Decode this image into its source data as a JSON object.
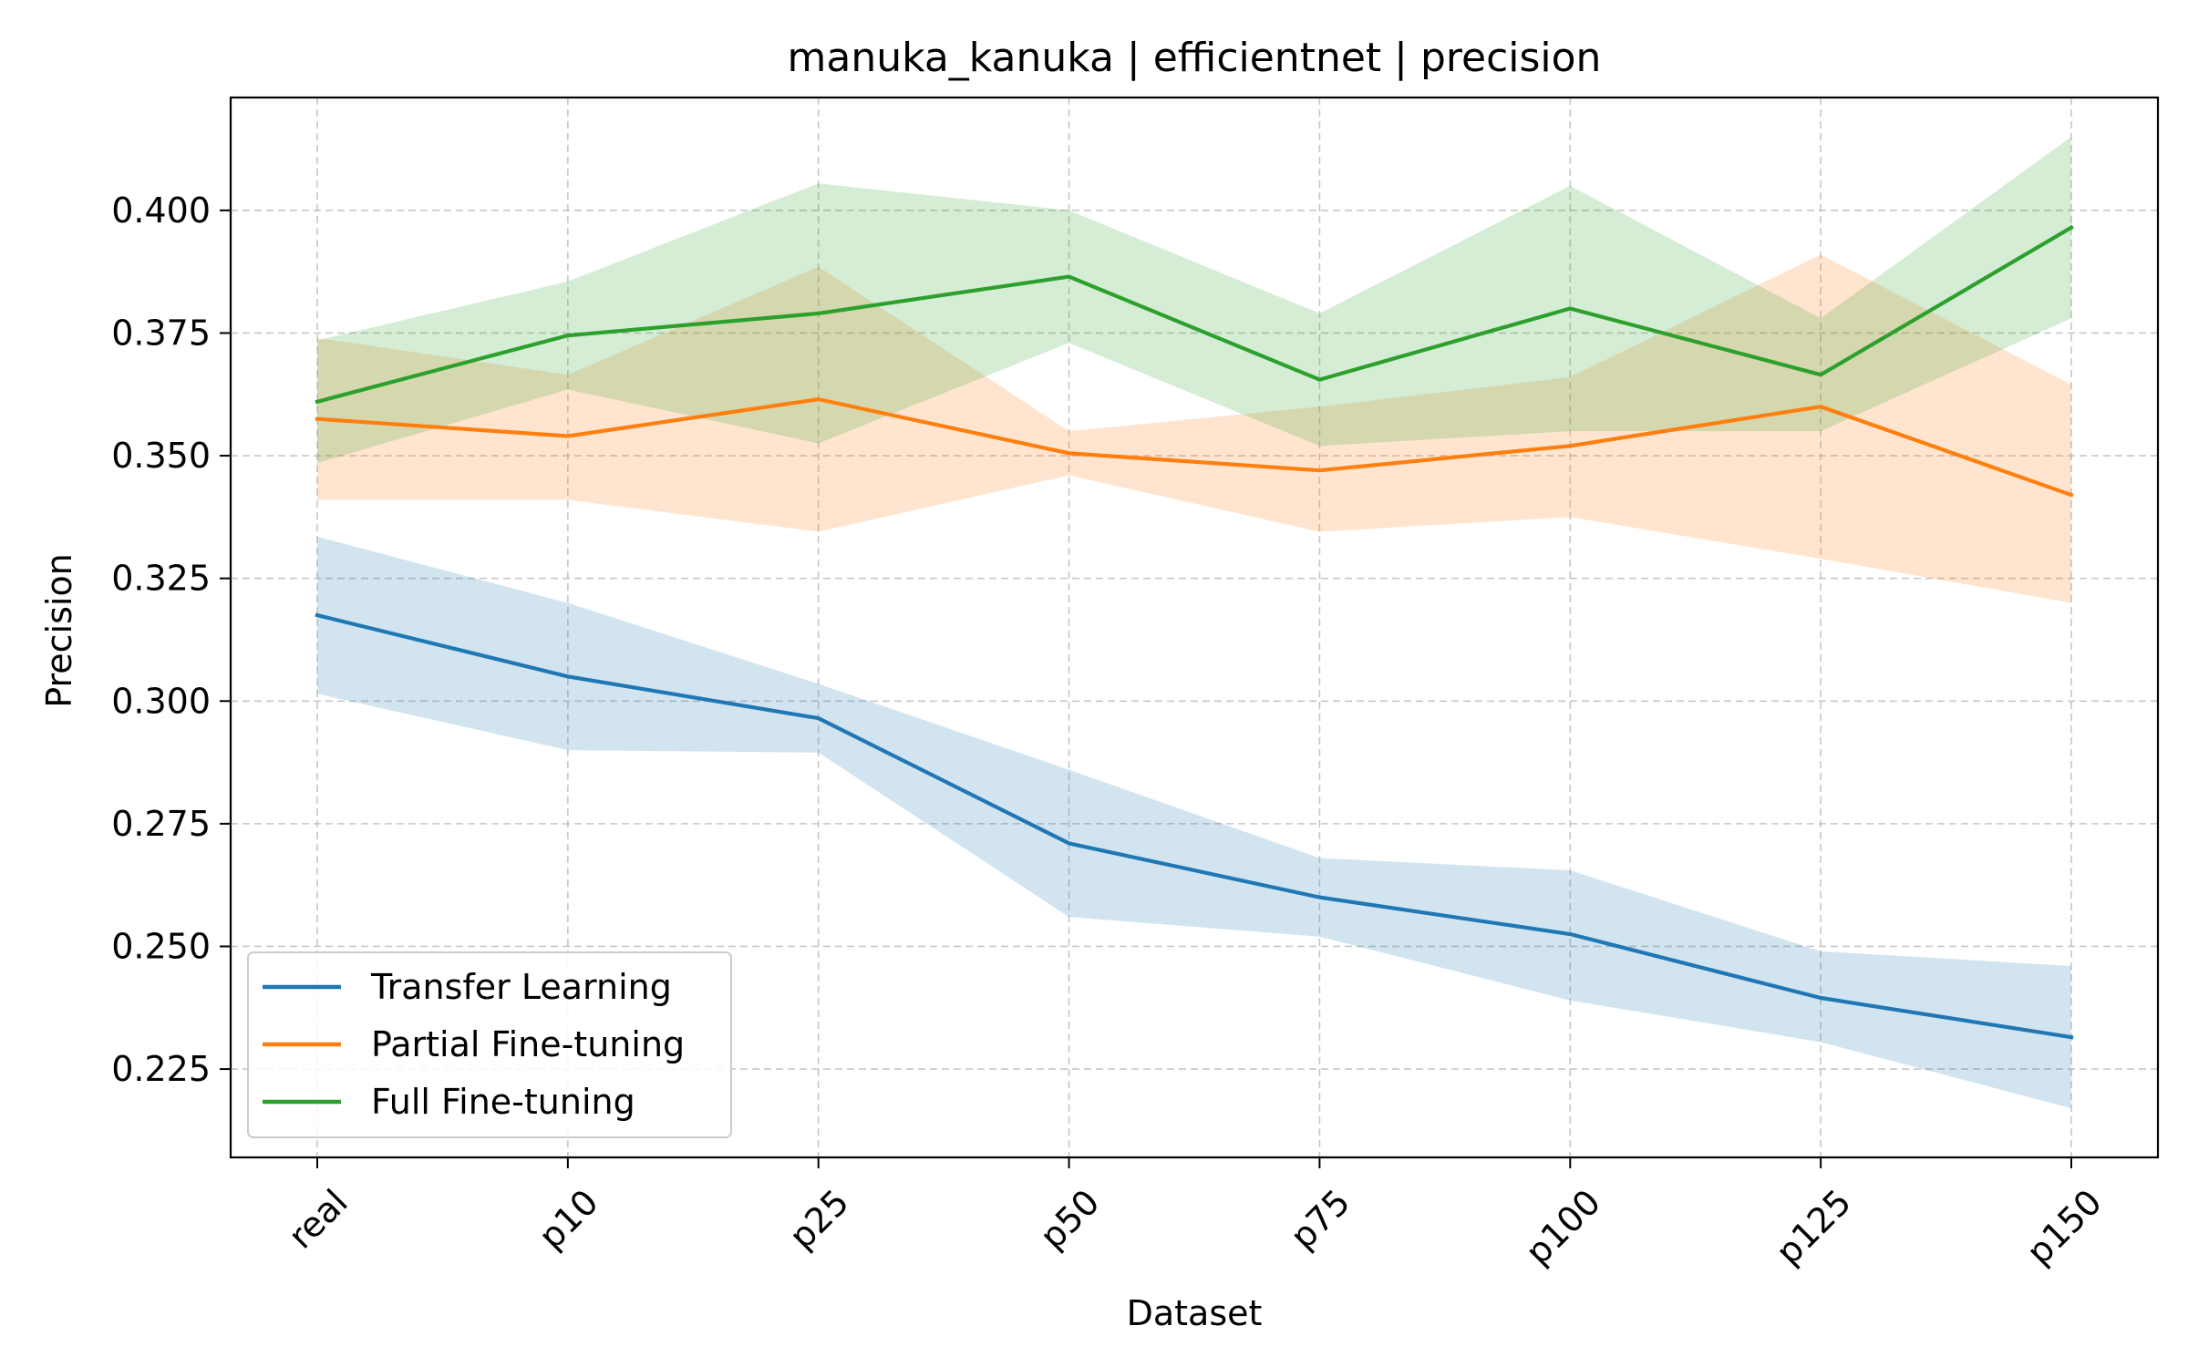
{
  "chart_data": {
    "type": "line",
    "title": "manuka_kanuka | efficientnet | precision",
    "xlabel": "Dataset",
    "ylabel": "Precision",
    "categories": [
      "real",
      "p10",
      "p25",
      "p50",
      "p75",
      "p100",
      "p125",
      "p150"
    ],
    "ylim": [
      0.207,
      0.423
    ],
    "yticks": [
      0.225,
      0.25,
      0.275,
      0.3,
      0.325,
      0.35,
      0.375,
      0.4
    ],
    "ytick_labels": [
      "0.225",
      "0.250",
      "0.275",
      "0.300",
      "0.325",
      "0.350",
      "0.375",
      "0.400"
    ],
    "grid": true,
    "legend_position": "lower-left",
    "series": [
      {
        "name": "Transfer Learning",
        "color": "#1f77b4",
        "values": [
          0.3175,
          0.305,
          0.2965,
          0.271,
          0.26,
          0.2525,
          0.2395,
          0.2315
        ],
        "upper": [
          0.3335,
          0.32,
          0.3035,
          0.286,
          0.268,
          0.2655,
          0.249,
          0.246
        ],
        "lower": [
          0.3015,
          0.29,
          0.2895,
          0.256,
          0.252,
          0.239,
          0.2305,
          0.217
        ]
      },
      {
        "name": "Partial Fine-tuning",
        "color": "#ff7f0e",
        "values": [
          0.3575,
          0.354,
          0.3615,
          0.3505,
          0.347,
          0.352,
          0.36,
          0.342
        ],
        "upper": [
          0.374,
          0.3665,
          0.3885,
          0.355,
          0.36,
          0.366,
          0.391,
          0.3645
        ],
        "lower": [
          0.341,
          0.341,
          0.3345,
          0.346,
          0.3345,
          0.3375,
          0.329,
          0.32
        ]
      },
      {
        "name": "Full Fine-tuning",
        "color": "#2ca02c",
        "values": [
          0.361,
          0.3745,
          0.379,
          0.3865,
          0.3655,
          0.38,
          0.3665,
          0.3965
        ],
        "upper": [
          0.3735,
          0.3855,
          0.4055,
          0.4,
          0.379,
          0.405,
          0.378,
          0.415
        ],
        "lower": [
          0.3485,
          0.3635,
          0.3525,
          0.373,
          0.352,
          0.355,
          0.355,
          0.378
        ]
      }
    ]
  }
}
